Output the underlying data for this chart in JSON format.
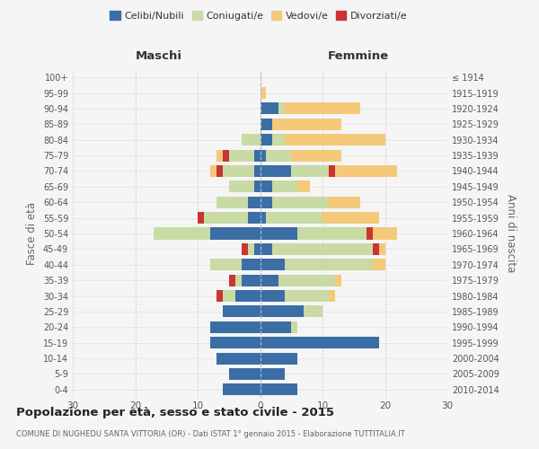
{
  "age_groups": [
    "0-4",
    "5-9",
    "10-14",
    "15-19",
    "20-24",
    "25-29",
    "30-34",
    "35-39",
    "40-44",
    "45-49",
    "50-54",
    "55-59",
    "60-64",
    "65-69",
    "70-74",
    "75-79",
    "80-84",
    "85-89",
    "90-94",
    "95-99",
    "100+"
  ],
  "birth_years": [
    "2010-2014",
    "2005-2009",
    "2000-2004",
    "1995-1999",
    "1990-1994",
    "1985-1989",
    "1980-1984",
    "1975-1979",
    "1970-1974",
    "1965-1969",
    "1960-1964",
    "1955-1959",
    "1950-1954",
    "1945-1949",
    "1940-1944",
    "1935-1939",
    "1930-1934",
    "1925-1929",
    "1920-1924",
    "1915-1919",
    "≤ 1914"
  ],
  "maschi": {
    "celibi": [
      6,
      5,
      7,
      8,
      8,
      6,
      4,
      3,
      3,
      1,
      8,
      2,
      2,
      1,
      1,
      1,
      0,
      0,
      0,
      0,
      0
    ],
    "coniugati": [
      0,
      0,
      0,
      0,
      0,
      0,
      2,
      1,
      5,
      1,
      9,
      7,
      5,
      4,
      5,
      4,
      3,
      0,
      0,
      0,
      0
    ],
    "vedovi": [
      0,
      0,
      0,
      0,
      0,
      0,
      0,
      0,
      0,
      0,
      0,
      0,
      0,
      0,
      1,
      1,
      0,
      0,
      0,
      0,
      0
    ],
    "divorziati": [
      0,
      0,
      0,
      0,
      0,
      0,
      1,
      1,
      0,
      1,
      0,
      1,
      0,
      0,
      1,
      1,
      0,
      0,
      0,
      0,
      0
    ]
  },
  "femmine": {
    "nubili": [
      6,
      4,
      6,
      19,
      5,
      7,
      4,
      3,
      4,
      2,
      6,
      1,
      2,
      2,
      5,
      1,
      2,
      2,
      3,
      0,
      0
    ],
    "coniugate": [
      0,
      0,
      0,
      0,
      1,
      3,
      7,
      9,
      14,
      16,
      11,
      9,
      9,
      4,
      6,
      4,
      2,
      0,
      1,
      0,
      0
    ],
    "vedove": [
      0,
      0,
      0,
      0,
      0,
      0,
      1,
      1,
      2,
      1,
      4,
      9,
      5,
      2,
      10,
      8,
      16,
      11,
      12,
      1,
      0
    ],
    "divorziate": [
      0,
      0,
      0,
      0,
      0,
      0,
      0,
      0,
      0,
      1,
      1,
      0,
      0,
      0,
      1,
      0,
      0,
      0,
      0,
      0,
      0
    ]
  },
  "colors": {
    "celibi_nubili": "#3b6ea5",
    "coniugati": "#c8dba4",
    "vedovi": "#f5c97a",
    "divorziati": "#cc3333"
  },
  "xlim": 30,
  "title": "Popolazione per età, sesso e stato civile - 2015",
  "subtitle": "COMUNE DI NUGHEDU SANTA VITTORIA (OR) - Dati ISTAT 1° gennaio 2015 - Elaborazione TUTTITALIA.IT",
  "ylabel_left": "Fasce di età",
  "ylabel_right": "Anni di nascita",
  "header_left": "Maschi",
  "header_right": "Femmine",
  "legend_labels": [
    "Celibi/Nubili",
    "Coniugati/e",
    "Vedovi/e",
    "Divorziati/e"
  ],
  "bg_color": "#f5f5f5",
  "bar_height": 0.75
}
